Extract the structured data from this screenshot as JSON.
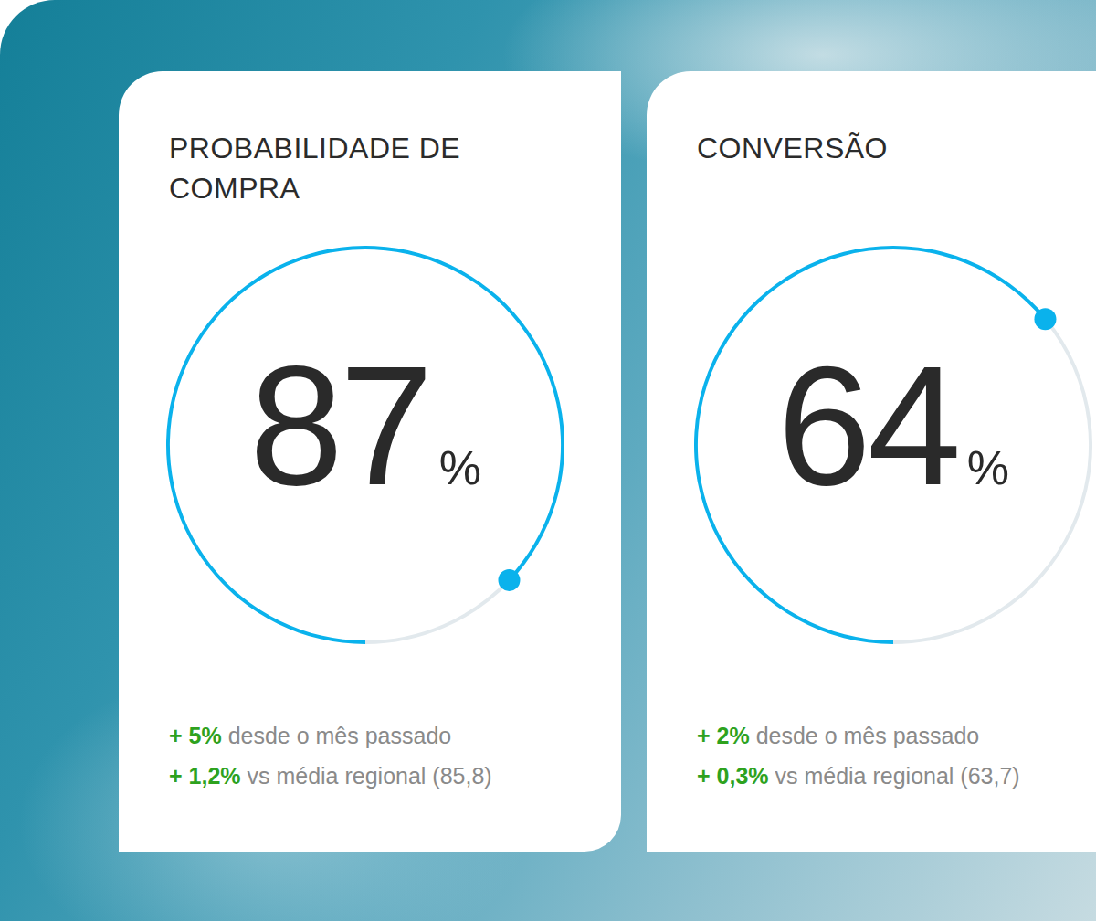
{
  "chart_data": [
    {
      "type": "donut",
      "title": "PROBABILIDADE DE COMPRA",
      "value": 87,
      "unit": "%",
      "range": [
        0,
        100
      ],
      "colors": [
        "#0ab2ec",
        "#e2e9ed"
      ],
      "changes": [
        {
          "delta": "+ 5%",
          "text": "desde o mês passado"
        },
        {
          "delta": "+ 1,2%",
          "text": "vs média regional (85,8)"
        }
      ]
    },
    {
      "type": "donut",
      "title": "CONVERSÃO",
      "value": 64,
      "unit": "%",
      "range": [
        0,
        100
      ],
      "colors": [
        "#0ab2ec",
        "#e2e9ed"
      ],
      "changes": [
        {
          "delta": "+ 2%",
          "text": "desde o mês passado"
        },
        {
          "delta": "+ 0,3%",
          "text": "vs média regional (63,7)"
        }
      ]
    }
  ]
}
